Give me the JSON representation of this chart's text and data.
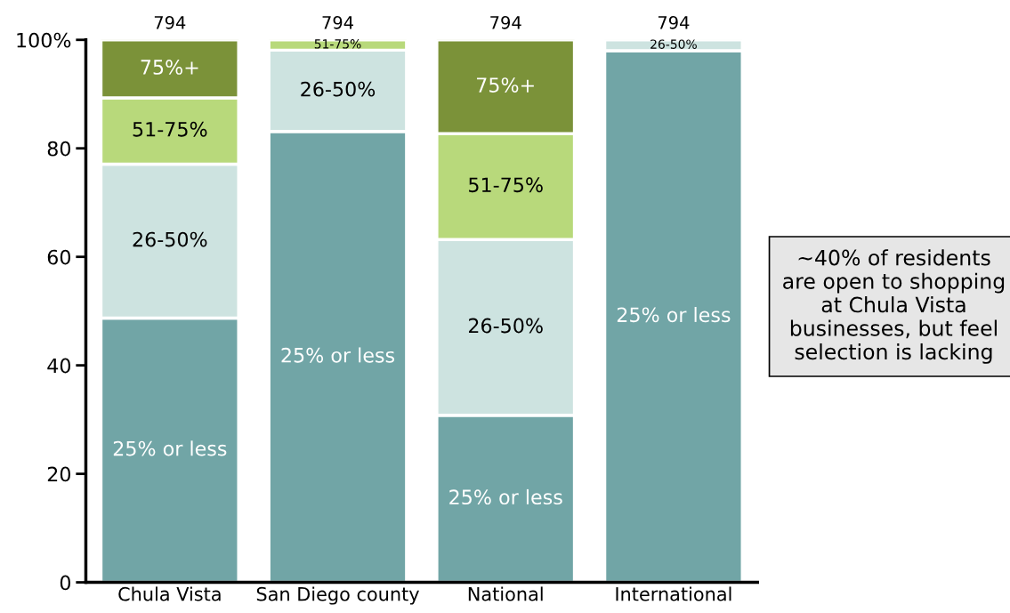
{
  "chart_data": {
    "type": "bar",
    "stacked": true,
    "categories": [
      "Chula Vista",
      "San Diego county",
      "National",
      "International"
    ],
    "series": [
      {
        "name": "25% or less",
        "color": "#71a5a6",
        "values": [
          48.7,
          83.1,
          30.8,
          98.0
        ]
      },
      {
        "name": "26-50%",
        "color": "#cde3e0",
        "values": [
          28.4,
          15.0,
          32.4,
          2.0
        ]
      },
      {
        "name": "51-75%",
        "color": "#b8d97b",
        "values": [
          12.2,
          1.9,
          19.5,
          0
        ]
      },
      {
        "name": "75%+",
        "color": "#7b9239",
        "values": [
          10.7,
          0,
          17.3,
          0
        ]
      }
    ],
    "ylim": [
      0,
      100
    ],
    "yticks": [
      0,
      20,
      40,
      60,
      80,
      {
        "value": 100,
        "label": "100%"
      }
    ],
    "grid": false,
    "legend": false,
    "annotations": [
      {
        "text": "794",
        "x": "Chula Vista",
        "y": 100
      },
      {
        "text": "794",
        "x": "San Diego county",
        "y": 100
      },
      {
        "text": "794",
        "x": "National",
        "y": 100
      },
      {
        "text": "794",
        "x": "International",
        "y": 100
      },
      "~40% of residents are open to shopping at Chula Vista businesses, but feel selection is lacking"
    ]
  }
}
